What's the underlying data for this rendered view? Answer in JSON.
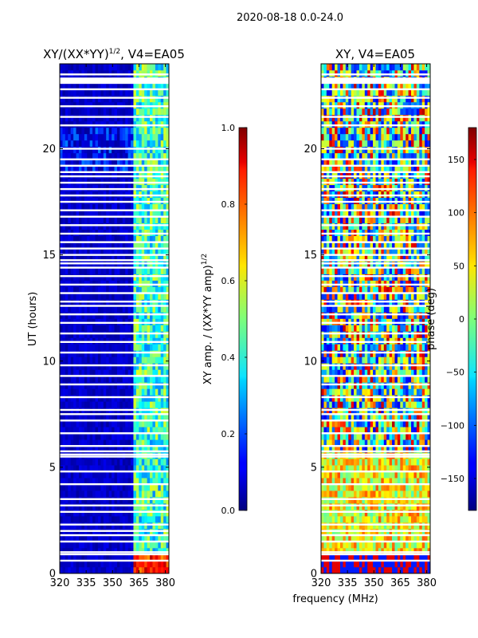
{
  "figure": {
    "suptitle": "2020-08-18 0.0-24.0",
    "xlabel": "frequency (MHz)"
  },
  "chart_data": [
    {
      "type": "heatmap",
      "title": "XY/(XX*YY)^1/2, V4=EA05",
      "title_main": "XY/(XX*YY)",
      "title_sup": "1/2",
      "title_rest": ", V4=EA05",
      "ylabel": "UT (hours)",
      "xlim": [
        320,
        382
      ],
      "ylim": [
        0,
        24
      ],
      "xticks": [
        320,
        335,
        350,
        365,
        380
      ],
      "yticks": [
        0,
        5,
        10,
        15,
        20
      ],
      "colorbar": {
        "label_main": "XY amp. / (XX*YY amp)",
        "label_sup": "1/2",
        "range": [
          0.0,
          1.0
        ],
        "ticks": [
          "0.0",
          "0.2",
          "0.4",
          "0.6",
          "0.8",
          "1.0"
        ],
        "tick_values": [
          0.0,
          0.2,
          0.4,
          0.6,
          0.8,
          1.0
        ]
      },
      "colormap": "jet",
      "value_description": "Low amplitude (~0.05) below 362 MHz; bright channel stripes (0.3-0.6) between 362 and 381 MHz"
    },
    {
      "type": "heatmap",
      "title": "XY, V4=EA05",
      "xlim": [
        320,
        382
      ],
      "ylim": [
        0,
        24
      ],
      "xticks": [
        320,
        335,
        350,
        365,
        380
      ],
      "yticks": [
        0,
        5,
        10,
        15,
        20
      ],
      "colorbar": {
        "label": "phase (deg)",
        "range": [
          -180,
          180
        ],
        "ticks": [
          "−150",
          "−100",
          "−50",
          "0",
          "50",
          "100",
          "150"
        ],
        "tick_values": [
          -150,
          -100,
          -50,
          0,
          50,
          100,
          150
        ]
      },
      "colormap": "jet",
      "value_description": "Noisy phase across full band; mostly yellow/green (0-60 deg) below 5.5 h, mixed red/blue above"
    }
  ],
  "flagged_hours": [
    0.6,
    0.9,
    1.0,
    1.5,
    1.8,
    2.0,
    2.3,
    2.9,
    3.2,
    3.5,
    4.2,
    4.8,
    5.5,
    5.6,
    5.75,
    6.0,
    6.6,
    7.2,
    7.5,
    7.7,
    8.3,
    8.9,
    9.3,
    9.8,
    10.4,
    10.9,
    11.3,
    11.8,
    12.2,
    12.6,
    12.8,
    13.2,
    13.6,
    14.0,
    14.4,
    14.6,
    14.75,
    15.0,
    15.3,
    15.6,
    16.0,
    16.4,
    16.8,
    17.1,
    17.5,
    17.8,
    18.1,
    18.4,
    18.7,
    18.9,
    19.2,
    19.5,
    20.0,
    21.1,
    21.5,
    22.0,
    22.4,
    22.8,
    23.1,
    23.3,
    23.5
  ]
}
